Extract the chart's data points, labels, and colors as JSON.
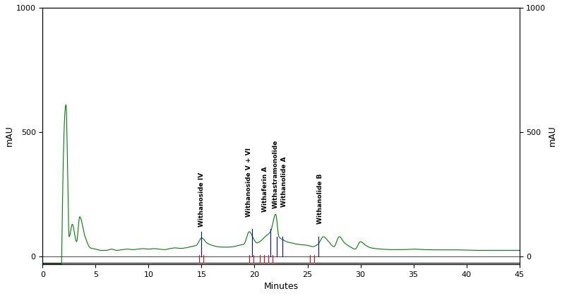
{
  "xlim": [
    0,
    45
  ],
  "ylim": [
    -30,
    1000
  ],
  "xlabel": "Minutes",
  "ylabel_left": "mAU",
  "ylabel_right": "mAU",
  "yticks": [
    0,
    500,
    1000
  ],
  "xticks": [
    0,
    5,
    10,
    15,
    20,
    25,
    30,
    35,
    40,
    45
  ],
  "bg_color": "#ffffff",
  "line_color": "#008000",
  "annotations": [
    {
      "label": "Withanoside IV",
      "x": 15.0,
      "rotation": 90
    },
    {
      "label": "Withanoside V + VI",
      "x": 19.5,
      "rotation": 90
    },
    {
      "label": "Withaferin A",
      "x": 21.0,
      "rotation": 90
    },
    {
      "label": "Withastramonolide",
      "x": 22.0,
      "rotation": 90
    },
    {
      "label": "Withanolide A",
      "x": 22.8,
      "rotation": 90
    },
    {
      "label": "Withanolide B",
      "x": 26.2,
      "rotation": 90
    }
  ],
  "red_lines": [
    [
      14.8,
      15.2
    ],
    [
      19.5,
      19.9
    ],
    [
      20.5,
      20.9
    ],
    [
      21.3,
      21.7
    ],
    [
      25.2,
      25.6
    ]
  ],
  "blue_lines": [
    [
      15.0
    ],
    [
      19.8
    ],
    [
      21.5
    ],
    [
      22.1
    ],
    [
      22.6
    ],
    [
      26.0
    ]
  ],
  "peaks_green": {
    "x": [
      1.8,
      2.2,
      2.5,
      2.8,
      3.2,
      3.5,
      4.0,
      4.5,
      5.0,
      5.5,
      6.0,
      6.5,
      7.0,
      7.5,
      8.0,
      8.5,
      9.0,
      9.5,
      10.0,
      10.5,
      11.0,
      11.5,
      12.0,
      12.5,
      13.0,
      13.5,
      14.0,
      14.5,
      15.0,
      15.5,
      16.0,
      16.5,
      17.0,
      17.5,
      18.0,
      18.5,
      19.0,
      19.5,
      20.0,
      20.2,
      20.5,
      21.0,
      21.5,
      22.0,
      22.3,
      22.8,
      23.0,
      23.5,
      24.0,
      24.5,
      25.0,
      25.5,
      26.0,
      26.5,
      27.0,
      27.5,
      28.0,
      28.5,
      29.0,
      29.5,
      30.0,
      30.5,
      31.0,
      32.0,
      33.0,
      34.0,
      35.0,
      36.0,
      37.0,
      38.0,
      39.0,
      40.0,
      41.0,
      42.0,
      43.0,
      44.0,
      45.0
    ],
    "y": [
      5,
      610,
      80,
      130,
      60,
      160,
      80,
      35,
      30,
      25,
      25,
      30,
      25,
      28,
      30,
      28,
      30,
      32,
      30,
      32,
      30,
      28,
      32,
      35,
      33,
      35,
      40,
      45,
      75,
      55,
      45,
      40,
      38,
      38,
      40,
      45,
      50,
      100,
      65,
      55,
      60,
      80,
      100,
      170,
      80,
      65,
      60,
      55,
      50,
      48,
      45,
      40,
      50,
      80,
      60,
      40,
      80,
      55,
      40,
      30,
      60,
      45,
      35,
      30,
      28,
      28,
      30,
      28,
      27,
      27,
      27,
      26,
      25,
      25,
      25,
      25,
      25
    ]
  }
}
